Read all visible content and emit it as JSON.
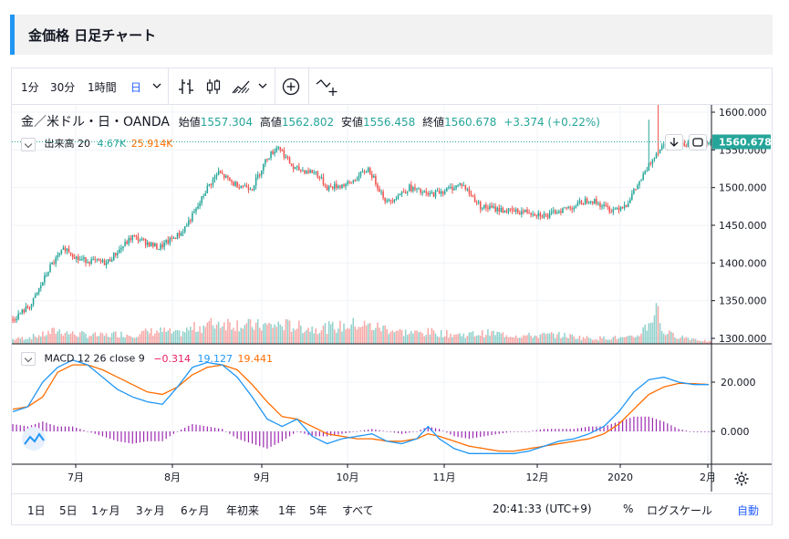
{
  "page": {
    "title": "金価格 日足チャート"
  },
  "toolbar": {
    "intervals": [
      "1分",
      "30分",
      "1時間",
      "日"
    ],
    "active_interval": "日"
  },
  "legend": {
    "symbol": "金／米ドル・日・OANDA",
    "open_label": "始値",
    "open": "1557.304",
    "high_label": "高値",
    "high": "1562.802",
    "low_label": "安値",
    "low": "1556.458",
    "close_label": "終値",
    "close": "1560.678",
    "change": "+3.374 (+0.22%)"
  },
  "volume_legend": {
    "label": "出来高",
    "period": "20",
    "value": "4.67K",
    "ma": "25.914K"
  },
  "macd_legend": {
    "label": "MACD",
    "params": "12 26 close 9",
    "hist": "−0.314",
    "macd": "19.127",
    "signal": "19.441"
  },
  "price_label": "1560.678",
  "bottom_bar": {
    "ranges": [
      "1日",
      "5日",
      "1ヶ月",
      "3ヶ月",
      "6ヶ月",
      "年初来",
      "1年",
      "5年",
      "すべて"
    ],
    "time": "20:41:33 (UTC+9)",
    "percent": "%",
    "log": "ログスケール",
    "auto": "自動"
  },
  "colors": {
    "up": "#26a69a",
    "down": "#ef5350",
    "macd": "#2196f3",
    "signal": "#ff6d00",
    "hist": "#9c27b0",
    "accent": "#2196f3"
  },
  "chart_data": [
    {
      "type": "candlestick",
      "title": "",
      "price_axis": {
        "min": 1300,
        "max": 1600,
        "ticks": [
          "1600.000",
          "1550.000",
          "1500.000",
          "1450.000",
          "1400.000",
          "1350.000",
          "1300.000"
        ]
      },
      "x_ticks": [
        "7月",
        "8月",
        "9月",
        "10月",
        "11月",
        "12月",
        "2020",
        "2月"
      ],
      "last_price": 1560.678,
      "close_path": [
        [
          0,
          1325
        ],
        [
          10,
          1345
        ],
        [
          20,
          1395
        ],
        [
          28,
          1420
        ],
        [
          35,
          1405
        ],
        [
          50,
          1400
        ],
        [
          58,
          1420
        ],
        [
          64,
          1435
        ],
        [
          78,
          1420
        ],
        [
          90,
          1440
        ],
        [
          98,
          1470
        ],
        [
          104,
          1500
        ],
        [
          110,
          1520
        ],
        [
          118,
          1505
        ],
        [
          128,
          1500
        ],
        [
          136,
          1540
        ],
        [
          142,
          1555
        ],
        [
          150,
          1525
        ],
        [
          162,
          1520
        ],
        [
          168,
          1500
        ],
        [
          180,
          1505
        ],
        [
          190,
          1525
        ],
        [
          200,
          1480
        ],
        [
          212,
          1500
        ],
        [
          222,
          1490
        ],
        [
          232,
          1497
        ],
        [
          240,
          1505
        ],
        [
          250,
          1475
        ],
        [
          262,
          1470
        ],
        [
          268,
          1468
        ],
        [
          276,
          1468
        ],
        [
          286,
          1462
        ],
        [
          292,
          1470
        ],
        [
          300,
          1475
        ],
        [
          308,
          1485
        ],
        [
          320,
          1470
        ],
        [
          328,
          1478
        ],
        [
          337,
          1515
        ],
        [
          343,
          1543
        ],
        [
          348,
          1558
        ],
        [
          360,
          1558
        ],
        [
          368,
          1556
        ],
        [
          373,
          1561
        ]
      ],
      "wick_highs": [
        [
          340,
          1590
        ],
        [
          345,
          1612
        ]
      ]
    },
    {
      "type": "bar",
      "title": "出来高",
      "volume_path": [
        [
          0,
          10
        ],
        [
          8,
          14
        ],
        [
          16,
          20
        ],
        [
          24,
          30
        ],
        [
          32,
          22
        ],
        [
          40,
          20
        ],
        [
          48,
          18
        ],
        [
          56,
          22
        ],
        [
          64,
          20
        ],
        [
          72,
          26
        ],
        [
          80,
          28
        ],
        [
          88,
          22
        ],
        [
          96,
          34
        ],
        [
          104,
          42
        ],
        [
          112,
          48
        ],
        [
          120,
          44
        ],
        [
          128,
          40
        ],
        [
          136,
          40
        ],
        [
          144,
          42
        ],
        [
          152,
          38
        ],
        [
          160,
          34
        ],
        [
          168,
          36
        ],
        [
          176,
          38
        ],
        [
          184,
          44
        ],
        [
          192,
          38
        ],
        [
          200,
          34
        ],
        [
          208,
          26
        ],
        [
          216,
          24
        ],
        [
          224,
          26
        ],
        [
          232,
          22
        ],
        [
          240,
          20
        ],
        [
          248,
          22
        ],
        [
          256,
          24
        ],
        [
          264,
          20
        ],
        [
          272,
          18
        ],
        [
          280,
          18
        ],
        [
          288,
          20
        ],
        [
          296,
          18
        ],
        [
          304,
          14
        ],
        [
          312,
          12
        ],
        [
          320,
          14
        ],
        [
          328,
          12
        ],
        [
          334,
          18
        ],
        [
          338,
          36
        ],
        [
          341,
          50
        ],
        [
          344,
          88
        ],
        [
          347,
          30
        ],
        [
          352,
          20
        ],
        [
          360,
          14
        ],
        [
          368,
          8
        ],
        [
          373,
          4
        ]
      ]
    },
    {
      "type": "line",
      "title": "MACD 12 26 close 9",
      "y_axis": {
        "ticks": [
          "20.000",
          "0.000"
        ]
      },
      "series": [
        {
          "name": "MACD",
          "values": [
            [
              0,
              8
            ],
            [
              8,
              10
            ],
            [
              16,
              20
            ],
            [
              24,
              26
            ],
            [
              32,
              29
            ],
            [
              40,
              27
            ],
            [
              48,
              22
            ],
            [
              56,
              17
            ],
            [
              64,
              14
            ],
            [
              72,
              12
            ],
            [
              80,
              11
            ],
            [
              88,
              18
            ],
            [
              96,
              26
            ],
            [
              104,
              28
            ],
            [
              112,
              27
            ],
            [
              120,
              22
            ],
            [
              128,
              14
            ],
            [
              136,
              5
            ],
            [
              144,
              2
            ],
            [
              152,
              5
            ],
            [
              160,
              -2
            ],
            [
              168,
              -5
            ],
            [
              176,
              -3
            ],
            [
              184,
              -2
            ],
            [
              192,
              -1
            ],
            [
              200,
              -4
            ],
            [
              208,
              -5
            ],
            [
              216,
              -3
            ],
            [
              222,
              2
            ],
            [
              228,
              -3
            ],
            [
              236,
              -7
            ],
            [
              244,
              -9
            ],
            [
              252,
              -9
            ],
            [
              260,
              -9
            ],
            [
              268,
              -9
            ],
            [
              276,
              -8
            ],
            [
              284,
              -6
            ],
            [
              292,
              -4
            ],
            [
              300,
              -3
            ],
            [
              308,
              -1
            ],
            [
              316,
              2
            ],
            [
              324,
              8
            ],
            [
              332,
              16
            ],
            [
              340,
              21
            ],
            [
              348,
              22
            ],
            [
              356,
              20
            ],
            [
              364,
              19
            ],
            [
              373,
              19
            ]
          ]
        },
        {
          "name": "Signal",
          "values": [
            [
              0,
              9
            ],
            [
              8,
              10
            ],
            [
              16,
              14
            ],
            [
              24,
              24
            ],
            [
              32,
              27
            ],
            [
              40,
              27
            ],
            [
              48,
              25
            ],
            [
              56,
              22
            ],
            [
              64,
              19
            ],
            [
              72,
              16
            ],
            [
              80,
              15
            ],
            [
              88,
              18
            ],
            [
              96,
              23
            ],
            [
              104,
              26
            ],
            [
              112,
              27
            ],
            [
              120,
              25
            ],
            [
              128,
              19
            ],
            [
              136,
              12
            ],
            [
              144,
              6
            ],
            [
              152,
              5
            ],
            [
              160,
              2
            ],
            [
              168,
              -1
            ],
            [
              176,
              -2
            ],
            [
              184,
              -3
            ],
            [
              192,
              -3
            ],
            [
              200,
              -4
            ],
            [
              208,
              -4
            ],
            [
              216,
              -3
            ],
            [
              222,
              -1
            ],
            [
              228,
              -2
            ],
            [
              236,
              -4
            ],
            [
              244,
              -6
            ],
            [
              252,
              -7
            ],
            [
              260,
              -8
            ],
            [
              268,
              -8
            ],
            [
              276,
              -7
            ],
            [
              284,
              -6
            ],
            [
              292,
              -5
            ],
            [
              300,
              -4
            ],
            [
              308,
              -3
            ],
            [
              316,
              -1
            ],
            [
              324,
              3
            ],
            [
              332,
              9
            ],
            [
              340,
              15
            ],
            [
              348,
              18
            ],
            [
              356,
              19.5
            ],
            [
              364,
              19.4
            ],
            [
              373,
              19
            ]
          ]
        },
        {
          "name": "Histogram",
          "values": [
            [
              0,
              3
            ],
            [
              8,
              2
            ],
            [
              16,
              4
            ],
            [
              24,
              2
            ],
            [
              32,
              2
            ],
            [
              40,
              0
            ],
            [
              48,
              -2
            ],
            [
              56,
              -4
            ],
            [
              64,
              -5
            ],
            [
              72,
              -4
            ],
            [
              80,
              -4
            ],
            [
              88,
              0
            ],
            [
              96,
              3
            ],
            [
              104,
              2
            ],
            [
              112,
              1
            ],
            [
              120,
              -3
            ],
            [
              128,
              -5
            ],
            [
              136,
              -7
            ],
            [
              144,
              -4
            ],
            [
              152,
              0
            ],
            [
              160,
              -2
            ],
            [
              168,
              -2
            ],
            [
              176,
              -1
            ],
            [
              184,
              0
            ],
            [
              192,
              1
            ],
            [
              200,
              0
            ],
            [
              208,
              -1
            ],
            [
              216,
              0
            ],
            [
              222,
              2
            ],
            [
              228,
              1
            ],
            [
              236,
              -2
            ],
            [
              244,
              -3
            ],
            [
              252,
              -2
            ],
            [
              260,
              -1
            ],
            [
              268,
              0
            ],
            [
              276,
              0
            ],
            [
              284,
              1
            ],
            [
              292,
              1
            ],
            [
              300,
              1
            ],
            [
              308,
              2
            ],
            [
              316,
              2
            ],
            [
              324,
              4
            ],
            [
              332,
              6
            ],
            [
              340,
              6
            ],
            [
              348,
              4
            ],
            [
              356,
              1
            ],
            [
              364,
              -0.3
            ],
            [
              373,
              -0.3
            ]
          ]
        }
      ]
    }
  ]
}
